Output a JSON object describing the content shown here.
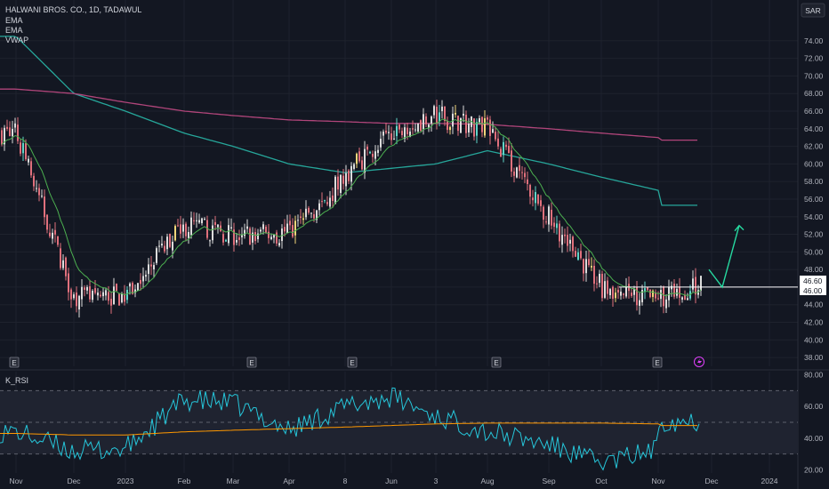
{
  "header": {
    "title": "HALWANI BROS. CO., 1D, TADAWUL",
    "indicators": [
      "EMA",
      "EMA",
      "VWAP"
    ],
    "currency": "SAR"
  },
  "rsi_pane": {
    "label": "K_RSI"
  },
  "colors": {
    "background": "#131722",
    "grid": "#1e222d",
    "axis_text": "#b2b5be",
    "candle_up": "#dcdcdc",
    "candle_down": "#e0707c",
    "candle_highlight_up": "#5fd5c8",
    "candle_highlight_yellow": "#f3d77a",
    "ema_long": "#26a69a",
    "ema_short": "#4caf50",
    "vwap": "#b0457a",
    "rsi": "#26c6da",
    "rsi_signal": "#ff9800",
    "arrow": "#26d9a0",
    "price_tag_bg": "#ffffff"
  },
  "icons": {
    "earnings_marker": "E",
    "lightning": "lightning-icon"
  },
  "chart_data": [
    {
      "type": "candlestick",
      "title": "HALWANI BROS. CO., 1D, TADAWUL",
      "currency": "SAR",
      "x_ticks": [
        "Nov",
        "Dec",
        "2023",
        "Feb",
        "Mar",
        "Apr",
        "8",
        "Jun",
        "3",
        "Aug",
        "Sep",
        "Oct",
        "Nov",
        "Dec",
        "2024"
      ],
      "y_ticks": [
        38,
        40,
        42,
        44,
        46,
        48,
        50,
        52,
        54,
        56,
        58,
        60,
        62,
        64,
        66,
        68,
        70,
        72,
        74
      ],
      "ylim": [
        37,
        75.8
      ],
      "price_tags": [
        "46.60",
        "46.00"
      ],
      "horizontal_line": 46.0,
      "price_path": {
        "date_anchors": [
          "Nov",
          "Dec",
          "2023",
          "Feb",
          "Mar",
          "Apr",
          "8",
          "Jun",
          "3",
          "Aug",
          "Sep",
          "Oct",
          "Nov",
          "Dec"
        ],
        "close_at_anchors": [
          63.5,
          45.0,
          45.0,
          53.0,
          52.0,
          52.0,
          58.5,
          64.0,
          65.5,
          64.0,
          54.0,
          46.0,
          44.5,
          null
        ]
      },
      "earnings_markers": [
        "Nov",
        "Mar",
        "Apr",
        "Jul",
        "Nov"
      ],
      "series": [
        {
          "name": "EMA",
          "anchors": [
            "Nov",
            "Dec",
            "2023",
            "Feb",
            "Mar",
            "Apr",
            "8",
            "Jun",
            "3",
            "Aug",
            "Sep",
            "Oct",
            "Nov",
            "Dec"
          ],
          "values": [
            74.5,
            68.0,
            66.0,
            63.5,
            62.0,
            60.0,
            59.0,
            59.5,
            60.0,
            61.5,
            60.0,
            58.5,
            57.0,
            55.3
          ]
        },
        {
          "name": "VWAP",
          "anchors": [
            "Nov",
            "Dec",
            "2023",
            "Feb",
            "Mar",
            "Apr",
            "8",
            "Jun",
            "3",
            "Aug",
            "Sep",
            "Oct",
            "Nov",
            "Dec"
          ],
          "values": [
            68.5,
            68.0,
            67.0,
            66.0,
            65.5,
            65.0,
            64.8,
            64.6,
            64.6,
            64.5,
            64.0,
            63.5,
            63.0,
            62.7
          ]
        }
      ],
      "projection_arrow": {
        "from": 48.0,
        "via": 46.0,
        "to": 53.0
      }
    },
    {
      "type": "line",
      "title": "K_RSI",
      "y_ticks": [
        20,
        40,
        60,
        80
      ],
      "ylim": [
        18,
        82
      ],
      "bands": [
        30,
        50,
        70
      ],
      "series": [
        {
          "name": "K_RSI",
          "anchors": [
            "Nov",
            "Dec",
            "2023",
            "Feb",
            "Mar",
            "Apr",
            "8",
            "Jun",
            "3",
            "Aug",
            "Sep",
            "Oct",
            "Nov",
            "Dec"
          ],
          "values": [
            44,
            32,
            33,
            64,
            62,
            45,
            60,
            66,
            54,
            44,
            36,
            24,
            33,
            51
          ]
        },
        {
          "anchors": [
            "Nov",
            "Dec",
            "2023",
            "Feb",
            "Mar",
            "Apr",
            "8",
            "Jun",
            "3",
            "Aug",
            "Sep",
            "Oct",
            "Nov",
            "Dec"
          ],
          "values": [
            43,
            42,
            42,
            44,
            45,
            46,
            47,
            48,
            49,
            49.5,
            49.5,
            49.5,
            49,
            48
          ]
        }
      ]
    }
  ]
}
